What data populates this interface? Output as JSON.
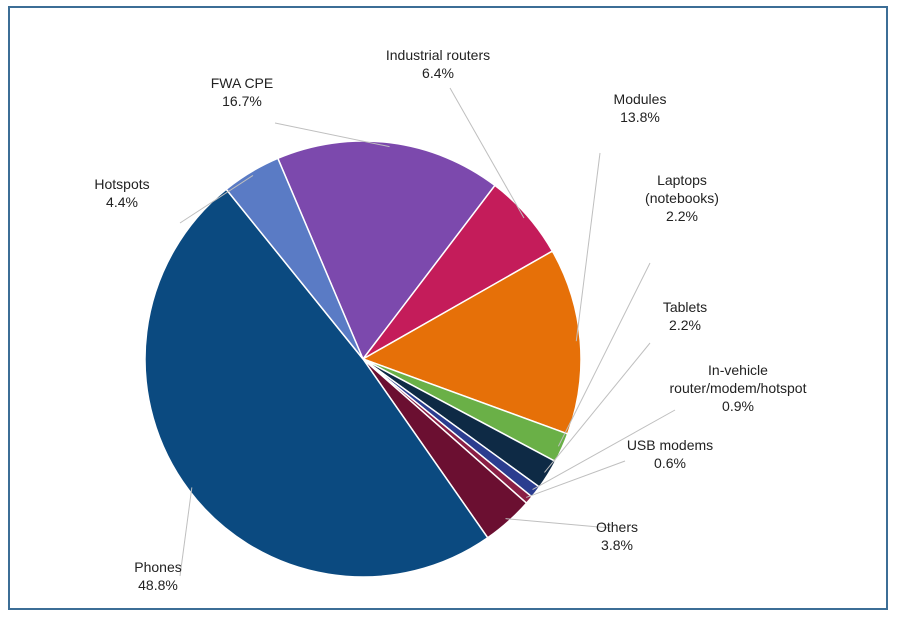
{
  "chart_data": {
    "type": "pie",
    "start_angle_deg": -113,
    "direction": "clockwise",
    "slices": [
      {
        "label_lines": [
          "FWA CPE"
        ],
        "value_label": "16.7%",
        "value": 16.7,
        "color": "#7c49ad"
      },
      {
        "label_lines": [
          "Industrial routers"
        ],
        "value_label": "6.4%",
        "value": 6.4,
        "color": "#c41c5a"
      },
      {
        "label_lines": [
          "Modules"
        ],
        "value_label": "13.8%",
        "value": 13.8,
        "color": "#e67008"
      },
      {
        "label_lines": [
          "Laptops",
          "(notebooks)"
        ],
        "value_label": "2.2%",
        "value": 2.2,
        "color": "#6ab047"
      },
      {
        "label_lines": [
          "Tablets"
        ],
        "value_label": "2.2%",
        "value": 2.2,
        "color": "#0e2a45"
      },
      {
        "label_lines": [
          "In-vehicle",
          "router/modem/hotspot"
        ],
        "value_label": "0.9%",
        "value": 0.9,
        "color": "#2b3d8f"
      },
      {
        "label_lines": [
          "USB modems"
        ],
        "value_label": "0.6%",
        "value": 0.6,
        "color": "#8a1f45"
      },
      {
        "label_lines": [
          "Others"
        ],
        "value_label": "3.8%",
        "value": 3.8,
        "color": "#6b0f31"
      },
      {
        "label_lines": [
          "Phones"
        ],
        "value_label": "48.8%",
        "value": 48.8,
        "color": "#0b4a80"
      },
      {
        "label_lines": [
          "Hotspots"
        ],
        "value_label": "4.4%",
        "value": 4.4,
        "color": "#5a7bc5"
      }
    ],
    "legend": "none"
  }
}
